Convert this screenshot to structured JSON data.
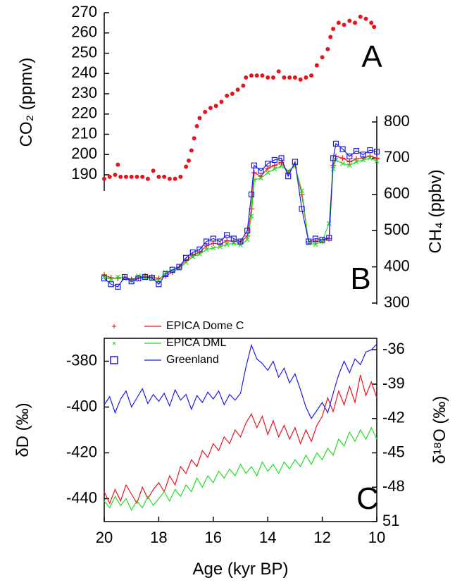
{
  "chart_data": [
    {
      "type": "scatter",
      "ylabel": "CO₂ (ppmv)",
      "annotation": "A",
      "y_axis_side": "left",
      "color": "#e8141c",
      "xlim": [
        20,
        10
      ],
      "ylim": [
        182,
        270
      ],
      "yticks": [
        190,
        200,
        210,
        220,
        230,
        240,
        250,
        260,
        270
      ],
      "x": [
        20.0,
        19.8,
        19.6,
        19.5,
        19.4,
        19.2,
        19.0,
        18.8,
        18.6,
        18.4,
        18.2,
        18.0,
        17.8,
        17.6,
        17.4,
        17.2,
        17.0,
        16.9,
        16.8,
        16.7,
        16.6,
        16.5,
        16.3,
        16.1,
        15.9,
        15.7,
        15.5,
        15.3,
        15.1,
        14.9,
        14.8,
        14.6,
        14.4,
        14.2,
        14.0,
        13.8,
        13.6,
        13.4,
        13.2,
        13.0,
        12.8,
        12.6,
        12.4,
        12.2,
        12.0,
        11.8,
        11.7,
        11.6,
        11.4,
        11.2,
        11.0,
        10.8,
        10.6,
        10.4,
        10.2,
        10.1
      ],
      "values": [
        188,
        189,
        190,
        195,
        189,
        189,
        189,
        189,
        189,
        188,
        192,
        189,
        189,
        188,
        188,
        189,
        194,
        197,
        202,
        208,
        214,
        218,
        221,
        223,
        224,
        226,
        229,
        230,
        232,
        234,
        238,
        239,
        239,
        239,
        238,
        238,
        241,
        238,
        238,
        238,
        237,
        238,
        239,
        244,
        248,
        252,
        258,
        262,
        265,
        264,
        266,
        265,
        268,
        267,
        265,
        263
      ]
    },
    {
      "type": "line",
      "ylabel": "CH₄ (ppbv)",
      "annotation": "B",
      "y_axis_side": "right",
      "xlim": [
        20,
        10
      ],
      "ylim": [
        300,
        800
      ],
      "yticks": [
        300,
        400,
        500,
        600,
        700,
        800
      ],
      "x": [
        20.0,
        19.75,
        19.5,
        19.25,
        19.0,
        18.75,
        18.5,
        18.25,
        18.0,
        17.75,
        17.5,
        17.25,
        17.0,
        16.75,
        16.5,
        16.25,
        16.0,
        15.75,
        15.5,
        15.25,
        15.0,
        14.75,
        14.6,
        14.5,
        14.25,
        14.0,
        13.75,
        13.5,
        13.25,
        13.0,
        12.75,
        12.5,
        12.25,
        12.0,
        11.75,
        11.6,
        11.5,
        11.25,
        11.0,
        10.75,
        10.5,
        10.25,
        10.0
      ],
      "series": [
        {
          "color": "#e8141c",
          "marker": "plus",
          "values": [
            378,
            370,
            368,
            372,
            365,
            370,
            375,
            372,
            368,
            375,
            385,
            398,
            418,
            432,
            440,
            458,
            465,
            462,
            472,
            470,
            468,
            485,
            560,
            660,
            650,
            672,
            680,
            688,
            660,
            682,
            600,
            468,
            470,
            472,
            478,
            680,
            705,
            700,
            690,
            698,
            700,
            706,
            700
          ]
        },
        {
          "color": "#22dd22",
          "marker": "cross",
          "values": [
            372,
            365,
            372,
            368,
            362,
            375,
            370,
            368,
            362,
            385,
            388,
            395,
            412,
            428,
            435,
            448,
            452,
            455,
            462,
            465,
            460,
            475,
            540,
            640,
            645,
            660,
            670,
            678,
            665,
            678,
            610,
            465,
            462,
            470,
            520,
            670,
            695,
            685,
            680,
            690,
            695,
            700,
            692
          ]
        },
        {
          "color": "#1c1ce8",
          "marker": "square",
          "values": [
            368,
            352,
            345,
            372,
            360,
            368,
            372,
            370,
            352,
            380,
            392,
            400,
            425,
            440,
            448,
            470,
            478,
            470,
            488,
            478,
            470,
            500,
            600,
            680,
            665,
            685,
            695,
            700,
            650,
            690,
            560,
            470,
            478,
            475,
            480,
            700,
            740,
            725,
            705,
            720,
            710,
            722,
            718
          ]
        }
      ]
    },
    {
      "type": "line",
      "ylabel": "δD (‰)",
      "y2label": "δ¹⁸O (‰)",
      "xlabel": "Age (kyr BP)",
      "annotation": "C",
      "legend": "upper left",
      "xlim": [
        20,
        10
      ],
      "xticks": [
        20,
        18,
        16,
        14,
        12,
        10
      ],
      "ylim": [
        -450,
        -370
      ],
      "yticks": [
        -440,
        -420,
        -400,
        -380
      ],
      "y2lim": [
        -51,
        -35
      ],
      "y2ticks": [
        {
          "value": -51,
          "label": "51"
        },
        -48,
        -45,
        -42,
        -39,
        -36
      ],
      "x": [
        20.0,
        19.8,
        19.6,
        19.4,
        19.2,
        19.0,
        18.8,
        18.6,
        18.4,
        18.2,
        18.0,
        17.8,
        17.6,
        17.4,
        17.2,
        17.0,
        16.8,
        16.6,
        16.4,
        16.2,
        16.0,
        15.8,
        15.6,
        15.4,
        15.2,
        15.0,
        14.8,
        14.6,
        14.4,
        14.2,
        14.0,
        13.8,
        13.6,
        13.4,
        13.2,
        13.0,
        12.8,
        12.6,
        12.4,
        12.2,
        12.0,
        11.8,
        11.6,
        11.4,
        11.2,
        11.0,
        10.8,
        10.6,
        10.4,
        10.2,
        10.0
      ],
      "series": [
        {
          "name": "EPICA Dome C",
          "color": "#e8141c",
          "values": [
            -437,
            -442,
            -436,
            -441,
            -434,
            -438,
            -442,
            -435,
            -440,
            -436,
            -433,
            -437,
            -430,
            -434,
            -426,
            -429,
            -423,
            -426,
            -419,
            -422,
            -416,
            -419,
            -413,
            -416,
            -410,
            -413,
            -407,
            -403,
            -409,
            -404,
            -412,
            -406,
            -413,
            -408,
            -414,
            -409,
            -416,
            -410,
            -415,
            -408,
            -404,
            -396,
            -402,
            -393,
            -399,
            -391,
            -398,
            -386,
            -395,
            -389,
            -396
          ]
        },
        {
          "name": "EPICA DML",
          "color": "#22dd22",
          "values": [
            -441,
            -444,
            -439,
            -443,
            -440,
            -445,
            -441,
            -444,
            -439,
            -443,
            -440,
            -437,
            -441,
            -436,
            -439,
            -434,
            -437,
            -431,
            -435,
            -430,
            -433,
            -428,
            -431,
            -427,
            -430,
            -425,
            -429,
            -426,
            -430,
            -424,
            -428,
            -425,
            -429,
            -424,
            -427,
            -423,
            -426,
            -421,
            -425,
            -420,
            -423,
            -418,
            -421,
            -414,
            -417,
            -411,
            -415,
            -410,
            -414,
            -409,
            -414
          ]
        },
        {
          "name": "Greenland",
          "color": "#1c1ce8",
          "axis": "y2",
          "values": [
            -40.8,
            -40.1,
            -41.5,
            -40.3,
            -39.6,
            -41.0,
            -40.2,
            -39.4,
            -40.7,
            -39.9,
            -40.5,
            -39.8,
            -40.9,
            -39.5,
            -40.4,
            -39.9,
            -41.2,
            -40.0,
            -40.6,
            -39.7,
            -40.3,
            -39.6,
            -40.8,
            -39.9,
            -40.4,
            -39.8,
            -37.5,
            -35.6,
            -36.8,
            -37.2,
            -37.8,
            -37.0,
            -38.4,
            -37.6,
            -38.9,
            -38.1,
            -39.5,
            -41.0,
            -42.0,
            -41.3,
            -40.6,
            -41.5,
            -39.8,
            -38.2,
            -37.0,
            -38.0,
            -36.8,
            -37.3,
            -36.2,
            -36.0,
            -35.5
          ]
        }
      ]
    }
  ]
}
